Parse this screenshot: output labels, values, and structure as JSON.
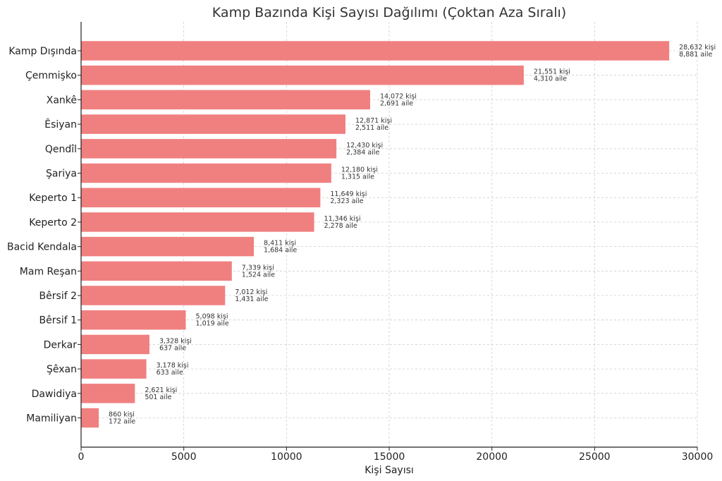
{
  "chart_data": {
    "type": "bar",
    "orientation": "horizontal",
    "title": "Kamp Bazında Kişi Sayısı Dağılımı (Çoktan Aza Sıralı)",
    "xlabel": "Kişi Sayısı",
    "ylabel": "",
    "xlim": [
      0,
      30000
    ],
    "xticks": [
      0,
      5000,
      10000,
      15000,
      20000,
      25000,
      30000
    ],
    "grid": true,
    "bar_color": "#f08080",
    "categories": [
      "Kamp Dışında",
      "Çemmişko",
      "Xankê",
      "Êsiyan",
      "Qendîl",
      "Şariya",
      "Keperto 1",
      "Keperto 2",
      "Bacid Kendala",
      "Mam Reşan",
      "Bêrsif 2",
      "Bêrsif 1",
      "Derkar",
      "Şêxan",
      "Dawidiya",
      "Mamiliyan"
    ],
    "values": [
      28632,
      21551,
      14072,
      12871,
      12430,
      12180,
      11649,
      11346,
      8411,
      7339,
      7012,
      5098,
      3328,
      3178,
      2621,
      860
    ],
    "families": [
      8881,
      4310,
      2691,
      2511,
      2384,
      1315,
      2323,
      2278,
      1684,
      1524,
      1431,
      1019,
      637,
      633,
      501,
      172
    ],
    "labels_persons": [
      "28,632 kişi",
      "21,551 kişi",
      "14,072 kişi",
      "12,871 kişi",
      "12,430 kişi",
      "12,180 kişi",
      "11,649 kişi",
      "11,346 kişi",
      "8,411 kişi",
      "7,339 kişi",
      "7,012 kişi",
      "5,098 kişi",
      "3,328 kişi",
      "3,178 kişi",
      "2,621 kişi",
      "860 kişi"
    ],
    "labels_families": [
      "8,881 aile",
      "4,310 aile",
      "2,691 aile",
      "2,511 aile",
      "2,384 aile",
      "1,315 aile",
      "2,323 aile",
      "2,278 aile",
      "1,684 aile",
      "1,524 aile",
      "1,431 aile",
      "1,019 aile",
      "637 aile",
      "633 aile",
      "501 aile",
      "172 aile"
    ]
  }
}
